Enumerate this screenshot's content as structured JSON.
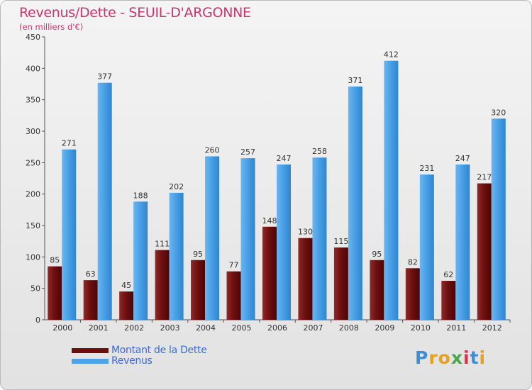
{
  "header": {
    "title": "Revenus/Dette - SEUIL-D'ARGONNE",
    "subtitle": "(en milliers d'€)"
  },
  "chart_data": {
    "type": "bar",
    "categories": [
      "2000",
      "2001",
      "2002",
      "2003",
      "2004",
      "2005",
      "2006",
      "2007",
      "2008",
      "2009",
      "2010",
      "2011",
      "2012"
    ],
    "series": [
      {
        "name": "Montant de la Dette",
        "color": "#6e0f0f",
        "values": [
          85,
          63,
          45,
          111,
          95,
          77,
          148,
          130,
          115,
          95,
          82,
          62,
          217
        ]
      },
      {
        "name": "Revenus",
        "color": "#4da3e8",
        "values": [
          271,
          377,
          188,
          202,
          260,
          257,
          247,
          258,
          371,
          412,
          231,
          247,
          320
        ]
      }
    ],
    "ylim": [
      0,
      450
    ],
    "yticks": [
      0,
      50,
      100,
      150,
      200,
      250,
      300,
      350,
      400,
      450
    ],
    "grid": false,
    "legend": "bottom-left"
  },
  "legend": {
    "items": [
      {
        "label": "Montant de la Dette",
        "color": "#6e0f0f"
      },
      {
        "label": "Revenus",
        "color": "#4da3e8"
      }
    ]
  },
  "logo": {
    "text": "Proxiti",
    "letters": [
      {
        "ch": "P",
        "color": "#3a8fd8"
      },
      {
        "ch": "r",
        "color": "#e8a020"
      },
      {
        "ch": "o",
        "color": "#e8a020"
      },
      {
        "ch": "x",
        "color": "#4aa84a"
      },
      {
        "ch": "i",
        "color": "#d9324a"
      },
      {
        "ch": "t",
        "color": "#3a8fd8"
      },
      {
        "ch": "i",
        "color": "#e8a020"
      }
    ]
  }
}
